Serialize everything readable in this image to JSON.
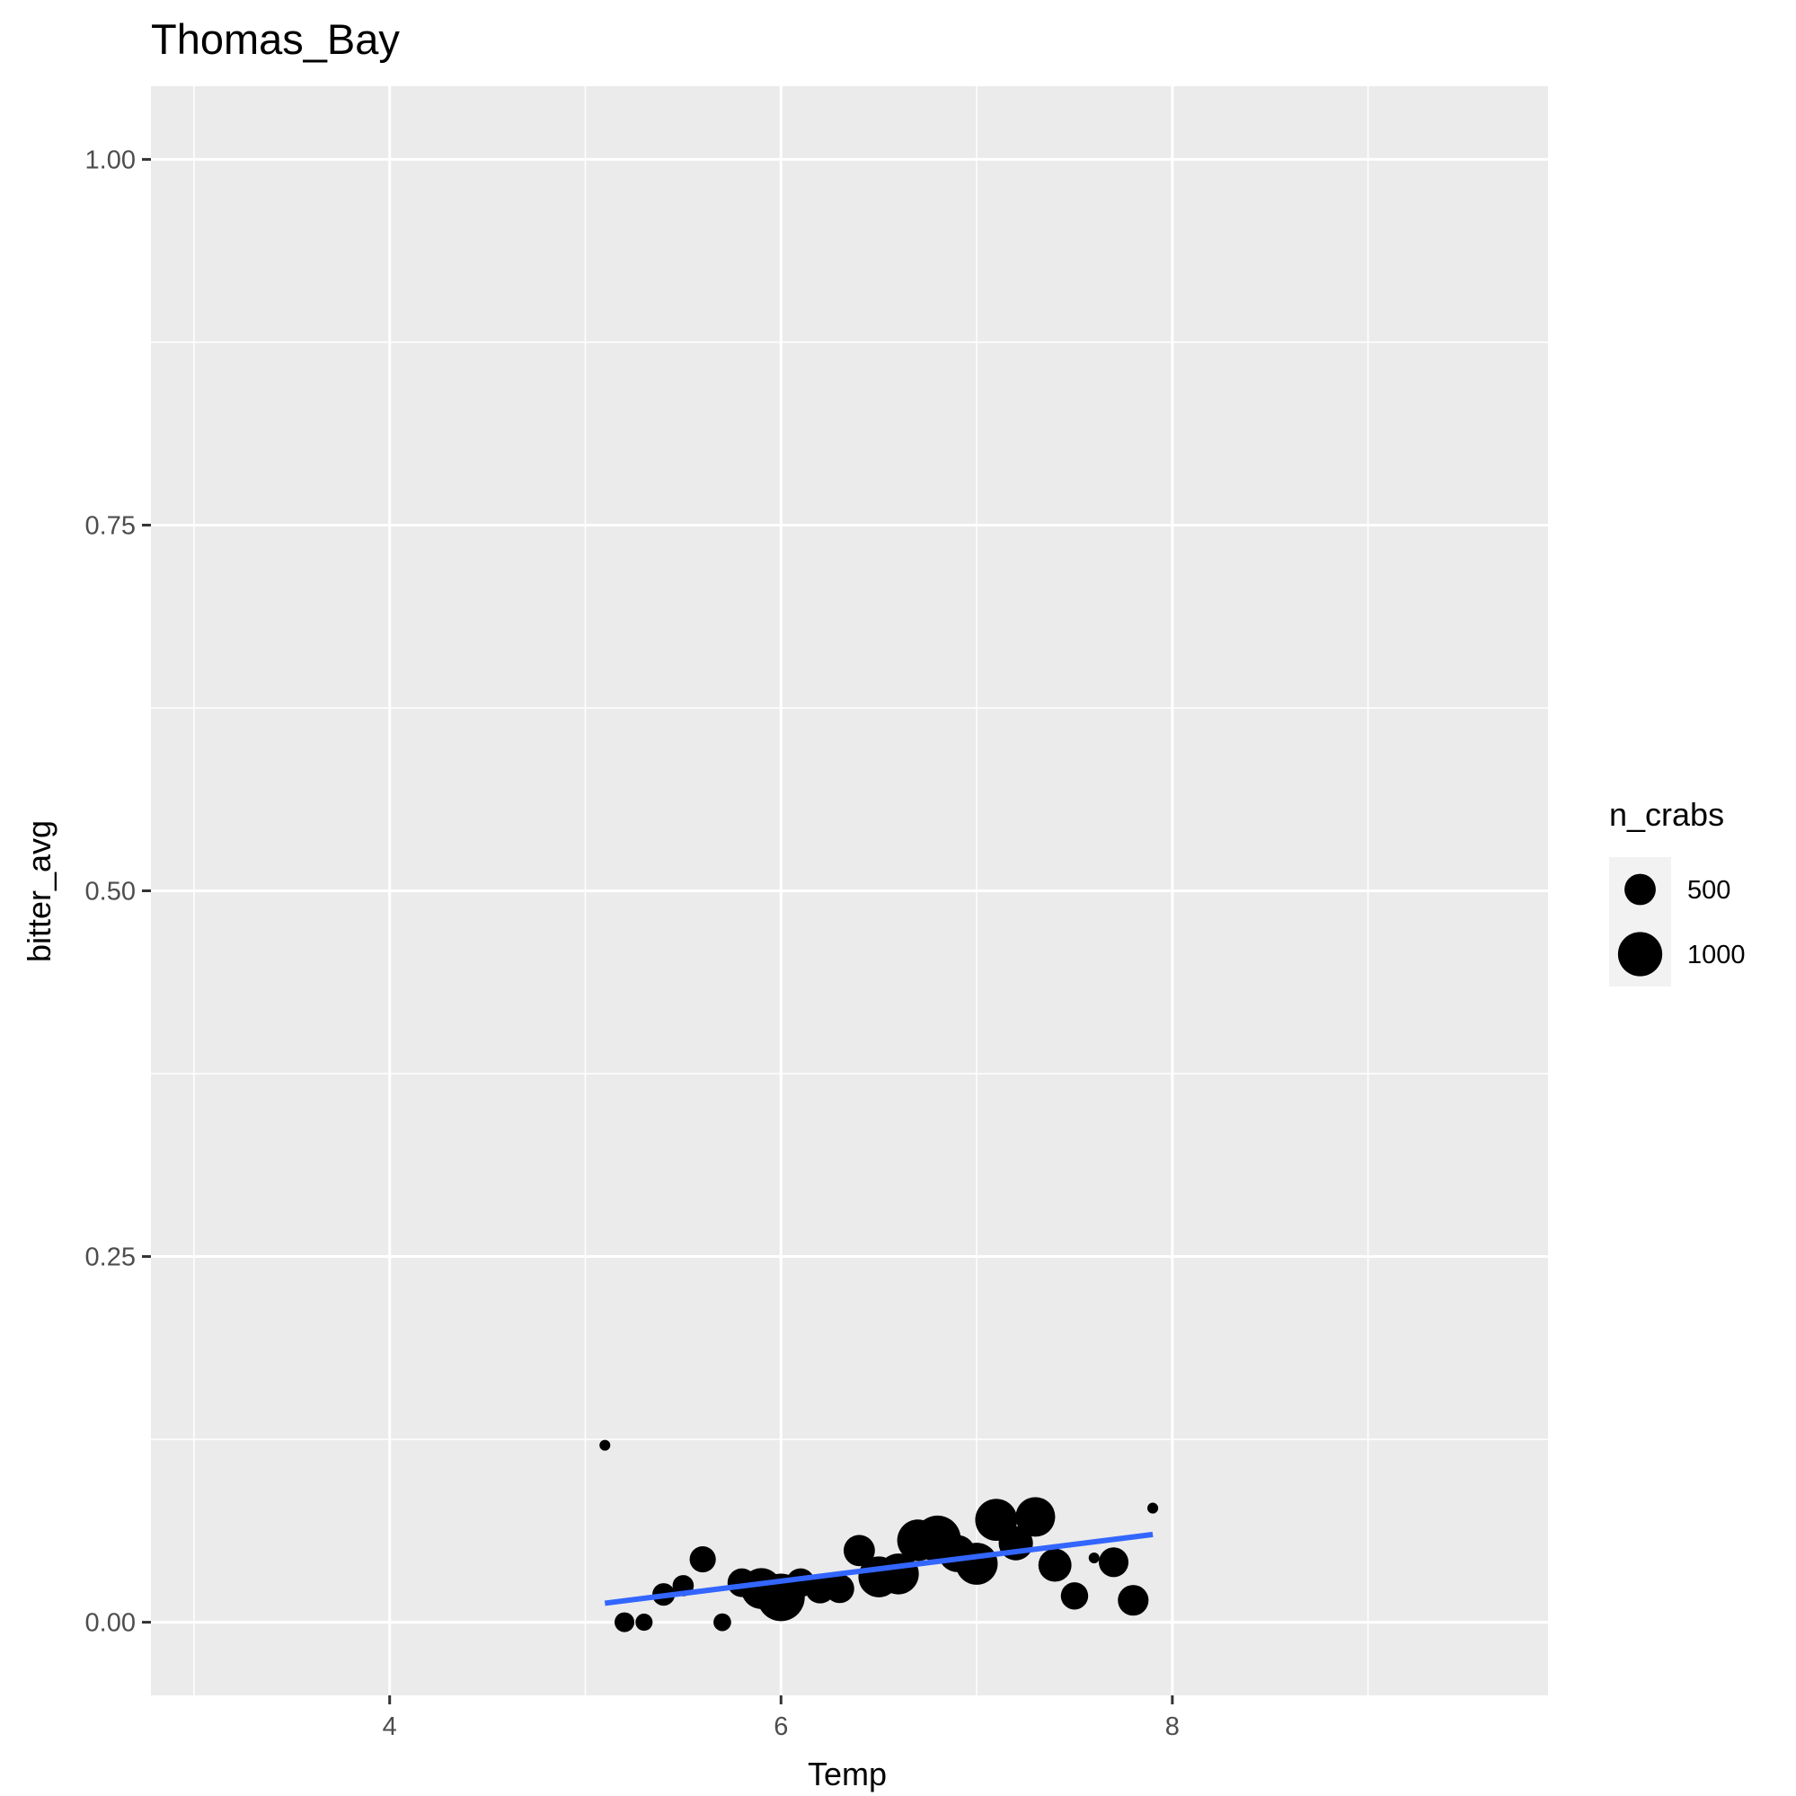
{
  "chart_data": {
    "type": "scatter",
    "title": "Thomas_Bay",
    "xlabel": "Temp",
    "ylabel": "bitter_avg",
    "xlim": [
      2.78,
      9.92
    ],
    "ylim": [
      -0.05,
      1.05
    ],
    "x_ticks": [
      4,
      6,
      8
    ],
    "x_tick_labels": [
      "4",
      "6",
      "8"
    ],
    "y_ticks": [
      0,
      0.25,
      0.5,
      0.75,
      1.0
    ],
    "y_tick_labels": [
      "0.00",
      "0.25",
      "0.50",
      "0.75",
      "1.00"
    ],
    "grid": true,
    "legend": {
      "title": "n_crabs",
      "placement": "right",
      "entries": [
        {
          "label": "500",
          "value": 500
        },
        {
          "label": "1000",
          "value": 1000
        }
      ]
    },
    "points": [
      {
        "x": 5.1,
        "y": 0.121,
        "n": 40
      },
      {
        "x": 5.2,
        "y": 0.0,
        "n": 200
      },
      {
        "x": 5.3,
        "y": 0.0,
        "n": 150
      },
      {
        "x": 5.4,
        "y": 0.019,
        "n": 260
      },
      {
        "x": 5.5,
        "y": 0.025,
        "n": 230
      },
      {
        "x": 5.6,
        "y": 0.043,
        "n": 350
      },
      {
        "x": 5.7,
        "y": 0.0,
        "n": 160
      },
      {
        "x": 5.8,
        "y": 0.027,
        "n": 420
      },
      {
        "x": 5.9,
        "y": 0.023,
        "n": 850
      },
      {
        "x": 6.0,
        "y": 0.017,
        "n": 1150
      },
      {
        "x": 6.1,
        "y": 0.027,
        "n": 420
      },
      {
        "x": 6.2,
        "y": 0.023,
        "n": 450
      },
      {
        "x": 6.3,
        "y": 0.023,
        "n": 430
      },
      {
        "x": 6.4,
        "y": 0.049,
        "n": 500
      },
      {
        "x": 6.5,
        "y": 0.031,
        "n": 850
      },
      {
        "x": 6.6,
        "y": 0.033,
        "n": 850
      },
      {
        "x": 6.7,
        "y": 0.056,
        "n": 880
      },
      {
        "x": 6.8,
        "y": 0.057,
        "n": 1100
      },
      {
        "x": 6.9,
        "y": 0.047,
        "n": 700
      },
      {
        "x": 7.0,
        "y": 0.04,
        "n": 900
      },
      {
        "x": 7.1,
        "y": 0.07,
        "n": 900
      },
      {
        "x": 7.2,
        "y": 0.054,
        "n": 600
      },
      {
        "x": 7.3,
        "y": 0.072,
        "n": 800
      },
      {
        "x": 7.4,
        "y": 0.039,
        "n": 560
      },
      {
        "x": 7.5,
        "y": 0.018,
        "n": 380
      },
      {
        "x": 7.6,
        "y": 0.044,
        "n": 10
      },
      {
        "x": 7.7,
        "y": 0.041,
        "n": 450
      },
      {
        "x": 7.8,
        "y": 0.015,
        "n": 480
      },
      {
        "x": 7.9,
        "y": 0.078,
        "n": 60
      }
    ],
    "trend_line": {
      "x": [
        5.1,
        7.9
      ],
      "y": [
        0.013,
        0.06
      ],
      "color": "#3366FF"
    },
    "colors": {
      "panel_background": "#EBEBEB",
      "grid_line": "#FFFFFF",
      "point": "#000000",
      "legend_key_background": "#F2F2F2"
    }
  }
}
